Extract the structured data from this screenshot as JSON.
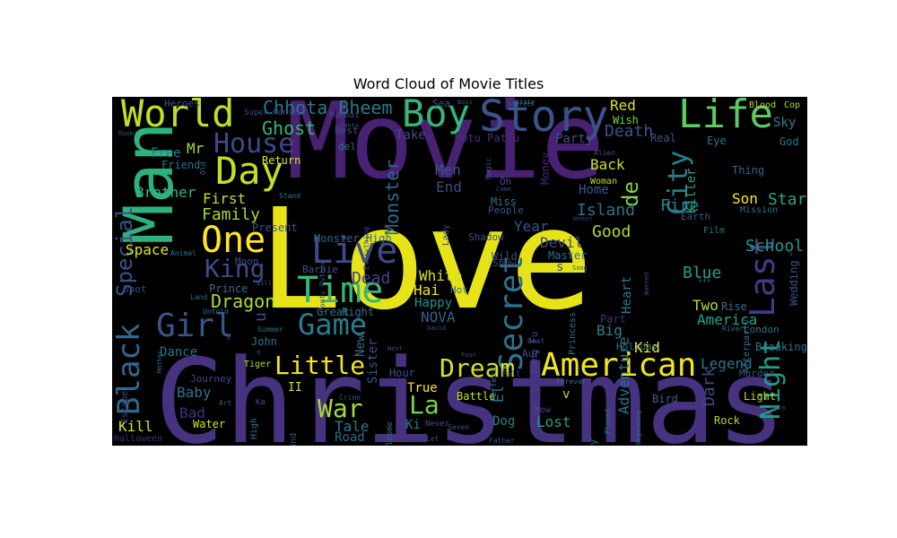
{
  "chart_data": {
    "type": "wordcloud",
    "title": "Word Cloud of Movie Titles",
    "background": "#000000",
    "colormap": "viridis",
    "words": [
      {
        "text": "Love",
        "weight": 1.0
      },
      {
        "text": "Christmas",
        "weight": 0.87
      },
      {
        "text": "Movie",
        "weight": 0.83
      },
      {
        "text": "Man",
        "weight": 0.55
      },
      {
        "text": "Story",
        "weight": 0.34
      },
      {
        "text": "Life",
        "weight": 0.33
      },
      {
        "text": "World",
        "weight": 0.3
      },
      {
        "text": "Boy",
        "weight": 0.3
      },
      {
        "text": "Day",
        "weight": 0.29
      },
      {
        "text": "Time",
        "weight": 0.28
      },
      {
        "text": "Live",
        "weight": 0.28
      },
      {
        "text": "One",
        "weight": 0.28
      },
      {
        "text": "American",
        "weight": 0.26
      },
      {
        "text": "Girl",
        "weight": 0.26
      },
      {
        "text": "Secret",
        "weight": 0.26
      },
      {
        "text": "Last",
        "weight": 0.26
      },
      {
        "text": "Black",
        "weight": 0.22
      },
      {
        "text": "Game",
        "weight": 0.22
      },
      {
        "text": "House",
        "weight": 0.22
      },
      {
        "text": "City",
        "weight": 0.21
      },
      {
        "text": "Night",
        "weight": 0.21
      },
      {
        "text": "Little",
        "weight": 0.21
      },
      {
        "text": "Dream",
        "weight": 0.21
      },
      {
        "text": "War",
        "weight": 0.21
      },
      {
        "text": "La",
        "weight": 0.21
      },
      {
        "text": "King",
        "weight": 0.2
      },
      {
        "text": "Special",
        "weight": 0.18
      },
      {
        "text": "Chhota Bheem",
        "weight": 0.17
      },
      {
        "text": "de",
        "weight": 0.17
      },
      {
        "text": "Dragon",
        "weight": 0.15
      },
      {
        "text": "Monster",
        "weight": 0.15
      },
      {
        "text": "Family",
        "weight": 0.14
      },
      {
        "text": "Death",
        "weight": 0.14
      },
      {
        "text": "Ghost",
        "weight": 0.14
      },
      {
        "text": "Blue",
        "weight": 0.14
      },
      {
        "text": "Dead",
        "weight": 0.14
      },
      {
        "text": "Fire",
        "weight": 0.14
      },
      {
        "text": "School",
        "weight": 0.13
      },
      {
        "text": "Island",
        "weight": 0.13
      },
      {
        "text": "Star",
        "weight": 0.13
      },
      {
        "text": "Good",
        "weight": 0.13
      },
      {
        "text": "Dark",
        "weight": 0.13
      },
      {
        "text": "Legend",
        "weight": 0.13
      },
      {
        "text": "Year",
        "weight": 0.13
      },
      {
        "text": "First",
        "weight": 0.13
      },
      {
        "text": "Brother",
        "weight": 0.12
      },
      {
        "text": "Two",
        "weight": 0.12
      },
      {
        "text": "America",
        "weight": 0.12
      },
      {
        "text": "Red",
        "weight": 0.12
      },
      {
        "text": "Devil",
        "weight": 0.12
      },
      {
        "text": "NOVA",
        "weight": 0.12
      },
      {
        "text": "White",
        "weight": 0.12
      },
      {
        "text": "Kid",
        "weight": 0.12
      },
      {
        "text": "Baby",
        "weight": 0.12
      },
      {
        "text": "Hai",
        "weight": 0.12
      },
      {
        "text": "Adventure",
        "weight": 0.12
      },
      {
        "text": "Tale",
        "weight": 0.12
      },
      {
        "text": "Big",
        "weight": 0.12
      },
      {
        "text": "Kill",
        "weight": 0.12
      },
      {
        "text": "Space",
        "weight": 0.12
      },
      {
        "text": "Son",
        "weight": 0.12
      },
      {
        "text": "Back",
        "weight": 0.12
      },
      {
        "text": "Men",
        "weight": 0.12
      },
      {
        "text": "End",
        "weight": 0.12
      },
      {
        "text": "Lost",
        "weight": 0.12
      },
      {
        "text": "Bad",
        "weight": 0.11
      },
      {
        "text": "True",
        "weight": 0.11
      },
      {
        "text": "Home",
        "weight": 0.11
      },
      {
        "text": "Mr",
        "weight": 0.11
      },
      {
        "text": "Take",
        "weight": 0.1
      },
      {
        "text": "Sky",
        "weight": 0.1
      },
      {
        "text": "Heart",
        "weight": 0.1
      },
      {
        "text": "El",
        "weight": 0.1
      },
      {
        "text": "New",
        "weight": 0.1
      },
      {
        "text": "Dog",
        "weight": 0.1
      },
      {
        "text": "Party",
        "weight": 0.1
      },
      {
        "text": "Happy",
        "weight": 0.1
      },
      {
        "text": "Sister",
        "weight": 0.1
      },
      {
        "text": "Killer",
        "weight": 0.1
      },
      {
        "text": "Dance",
        "weight": 0.1
      },
      {
        "text": "Ki",
        "weight": 0.1
      },
      {
        "text": "Free",
        "weight": 0.09
      },
      {
        "text": "Road",
        "weight": 0.09
      },
      {
        "text": "Master",
        "weight": 0.09
      },
      {
        "text": "Wedding",
        "weight": 0.09
      },
      {
        "text": "Prince",
        "weight": 0.08
      },
      {
        "text": "Rock",
        "weight": 0.08
      },
      {
        "text": "Light",
        "weight": 0.08
      },
      {
        "text": "Wish",
        "weight": 0.08
      },
      {
        "text": "Bird",
        "weight": 0.08
      },
      {
        "text": "God",
        "weight": 0.08
      },
      {
        "text": "Money",
        "weight": 0.08
      },
      {
        "text": "Battle",
        "weight": 0.08
      },
      {
        "text": "Hour",
        "weight": 0.08
      },
      {
        "text": "Breaking",
        "weight": 0.08
      },
      {
        "text": "Monster High",
        "weight": 0.08
      },
      {
        "text": "Motu Patlu",
        "weight": 0.08
      },
      {
        "text": "Blood",
        "weight": 0.07
      },
      {
        "text": "Cop",
        "weight": 0.07
      },
      {
        "text": "Water",
        "weight": 0.07
      },
      {
        "text": "Return",
        "weight": 0.07
      },
      {
        "text": "Friend",
        "weight": 0.07
      },
      {
        "text": "Eye",
        "weight": 0.07
      },
      {
        "text": "Great",
        "weight": 0.07
      },
      {
        "text": "John",
        "weight": 0.07
      },
      {
        "text": "Thing",
        "weight": 0.07
      },
      {
        "text": "Earth",
        "weight": 0.07
      },
      {
        "text": "Shadow",
        "weight": 0.07
      },
      {
        "text": "London",
        "weight": 0.07
      },
      {
        "text": "Real",
        "weight": 0.07
      },
      {
        "text": "Rise",
        "weight": 0.07
      },
      {
        "text": "Heroes",
        "weight": 0.06
      },
      {
        "text": "Super Monster",
        "weight": 0.06
      },
      {
        "text": "Sea",
        "weight": 0.06
      },
      {
        "text": "Mumbai",
        "weight": 0.06
      },
      {
        "text": "Present",
        "weight": 0.06
      },
      {
        "text": "Moon",
        "weight": 0.06
      },
      {
        "text": "Hot",
        "weight": 0.06
      },
      {
        "text": "Film",
        "weight": 0.06
      },
      {
        "text": "Miss",
        "weight": 0.06
      },
      {
        "text": "People",
        "weight": 0.06
      },
      {
        "text": "Woman",
        "weight": 0.06
      },
      {
        "text": "Tiger",
        "weight": 0.06
      },
      {
        "text": "Mission",
        "weight": 0.06
      },
      {
        "text": "Murder",
        "weight": 0.06
      },
      {
        "text": "Barbie",
        "weight": 0.06
      },
      {
        "text": "Shot",
        "weight": 0.06
      },
      {
        "text": "Right",
        "weight": 0.06
      },
      {
        "text": "Fall",
        "weight": 0.06
      },
      {
        "text": "Princess",
        "weight": 0.06
      },
      {
        "text": "Lady",
        "weight": 0.06
      },
      {
        "text": "Afterparty",
        "weight": 0.06
      },
      {
        "text": "History",
        "weight": 0.06
      },
      {
        "text": "Holiday",
        "weight": 0.06
      },
      {
        "text": "Journey",
        "weight": 0.06
      },
      {
        "text": "Show",
        "weight": 0.06
      },
      {
        "text": "Planet",
        "weight": 0.05
      },
      {
        "text": "Kung Fu",
        "weight": 0.05
      },
      {
        "text": "Escape",
        "weight": 0.05
      },
      {
        "text": "Beyond",
        "weight": 0.05
      },
      {
        "text": "Halloween",
        "weight": 0.05
      },
      {
        "text": "Welcome",
        "weight": 0.05
      },
      {
        "text": "Wild",
        "weight": 0.05
      },
      {
        "text": "Best",
        "weight": 0.05
      },
      {
        "text": "del",
        "weight": 0.05
      },
      {
        "text": "Animal",
        "weight": 0.04
      },
      {
        "text": "Land",
        "weight": 0.04
      },
      {
        "text": "Untold",
        "weight": 0.04
      },
      {
        "text": "Summer",
        "weight": 0.04
      },
      {
        "text": "Stand",
        "weight": 0.04
      },
      {
        "text": "Monty Python",
        "weight": 0.04
      },
      {
        "text": "Everything",
        "weight": 0.04
      },
      {
        "text": "Magic",
        "weight": 0.04
      },
      {
        "text": "Stories",
        "weight": 0.04
      },
      {
        "text": "Boss",
        "weight": 0.04
      },
      {
        "text": "State",
        "weight": 0.04
      },
      {
        "text": "Will",
        "weight": 0.04
      },
      {
        "text": "Alien",
        "weight": 0.04
      },
      {
        "text": "Come",
        "weight": 0.04
      },
      {
        "text": "Women",
        "weight": 0.04
      },
      {
        "text": "Wanted",
        "weight": 0.04
      },
      {
        "text": "Song",
        "weight": 0.04
      },
      {
        "text": "River",
        "weight": 0.04
      },
      {
        "text": "Born",
        "weight": 0.04
      },
      {
        "text": "Crime",
        "weight": 0.04
      },
      {
        "text": "Beat",
        "weight": 0.04
      },
      {
        "text": "Forever",
        "weight": 0.04
      },
      {
        "text": "Never",
        "weight": 0.04
      },
      {
        "text": "Seven",
        "weight": 0.04
      },
      {
        "text": "Father",
        "weight": 0.04
      },
      {
        "text": "Beginning",
        "weight": 0.04
      },
      {
        "text": "Perfect",
        "weight": 0.04
      },
      {
        "text": "David",
        "weight": 0.04
      },
      {
        "text": "Four",
        "weight": 0.04
      },
      {
        "text": "Next",
        "weight": 0.04
      },
      {
        "text": "Mother",
        "weight": 0.04
      },
      {
        "text": "Art",
        "weight": 0.04
      },
      {
        "text": "Room",
        "weight": 0.04
      },
      {
        "text": "Santa",
        "weight": 0.04
      },
      {
        "text": "Let",
        "weight": 0.04
      },
      {
        "text": "High",
        "weight": 0.05
      },
      {
        "text": "Old",
        "weight": 0.04
      },
      {
        "text": "Oh",
        "weight": 0.05
      },
      {
        "text": "Now",
        "weight": 0.05
      },
      {
        "text": "Part",
        "weight": 0.05
      },
      {
        "text": "Aur",
        "weight": 0.06
      },
      {
        "text": "II",
        "weight": 0.08
      },
      {
        "text": "III",
        "weight": 0.04
      },
      {
        "text": "Ka",
        "weight": 0.05
      },
      {
        "text": "Bill",
        "weight": 0.04
      },
      {
        "text": "u",
        "weight": 0.1
      },
      {
        "text": "v",
        "weight": 0.09
      },
      {
        "text": "s",
        "weight": 0.09
      },
      {
        "text": "y",
        "weight": 0.06
      },
      {
        "text": "o",
        "weight": 0.05
      },
      {
        "text": "S",
        "weight": 0.04
      }
    ]
  }
}
